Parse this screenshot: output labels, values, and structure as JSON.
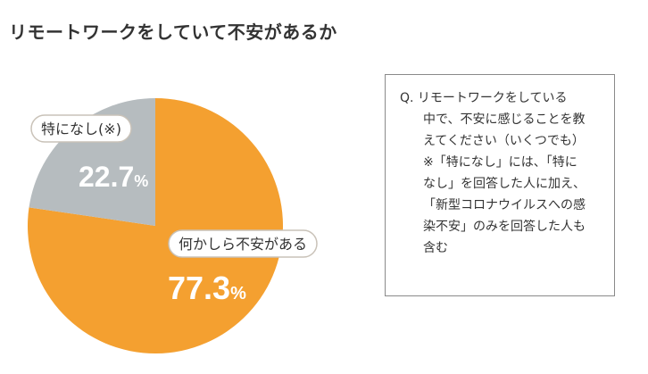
{
  "chart_data": {
    "type": "pie",
    "title": "リモートワークをしていて不安があるか",
    "slices": [
      {
        "label": "何かしら不安がある",
        "value": 77.3,
        "display": "77.3",
        "unit": "%",
        "color": "#f4a030"
      },
      {
        "label": "特になし(※)",
        "value": 22.7,
        "display": "22.7",
        "unit": "%",
        "color": "#b6bcbf"
      }
    ]
  },
  "question_box": {
    "lines": [
      "Q. リモートワークをしている",
      "中で、不安に感じることを教",
      "えてください（いくつでも）",
      "※「特になし」には、「特に",
      "なし」を回答した人に加え、",
      "「新型コロナウイルスへの感",
      "染不安」のみを回答した人も",
      "含む"
    ]
  }
}
